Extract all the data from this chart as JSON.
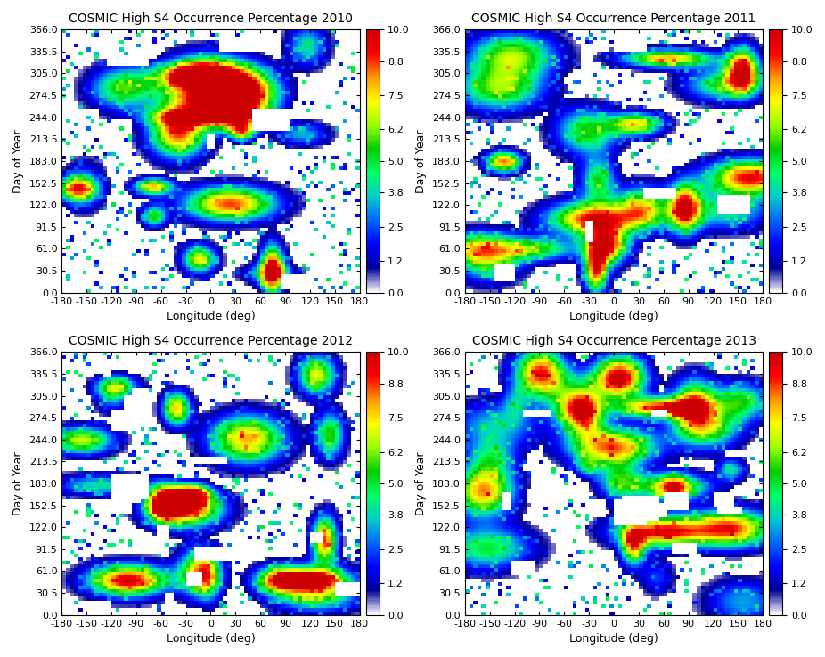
{
  "years": [
    2010,
    2011,
    2012,
    2013
  ],
  "titles": [
    "COSMIC High S4 Occurrence Percentage 2010",
    "COSMIC High S4 Occurrence Percentage 2011",
    "COSMIC High S4 Occurrence Percentage 2012",
    "COSMIC High S4 Occurrence Percentage 2013"
  ],
  "xlabel": "Longitude (deg)",
  "ylabel": "Day of Year",
  "lon_range": [
    -180,
    180
  ],
  "day_range": [
    0,
    366
  ],
  "vmin": 0.0,
  "vmax": 10.0,
  "cbar_ticks": [
    0.0,
    1.2,
    2.5,
    3.8,
    5.0,
    6.2,
    7.5,
    8.8,
    10.0
  ],
  "lon_ticks": [
    -180,
    -150,
    -120,
    -90,
    -60,
    -30,
    0,
    30,
    60,
    90,
    120,
    150,
    180
  ],
  "day_ticks": [
    0.0,
    30.5,
    61.0,
    91.5,
    122.0,
    152.5,
    183.0,
    213.5,
    244.0,
    274.5,
    305.0,
    335.5,
    366.0
  ],
  "seed_2010": 42,
  "seed_2011": 43,
  "seed_2012": 44,
  "seed_2013": 45,
  "n_lon": 72,
  "n_day": 73
}
